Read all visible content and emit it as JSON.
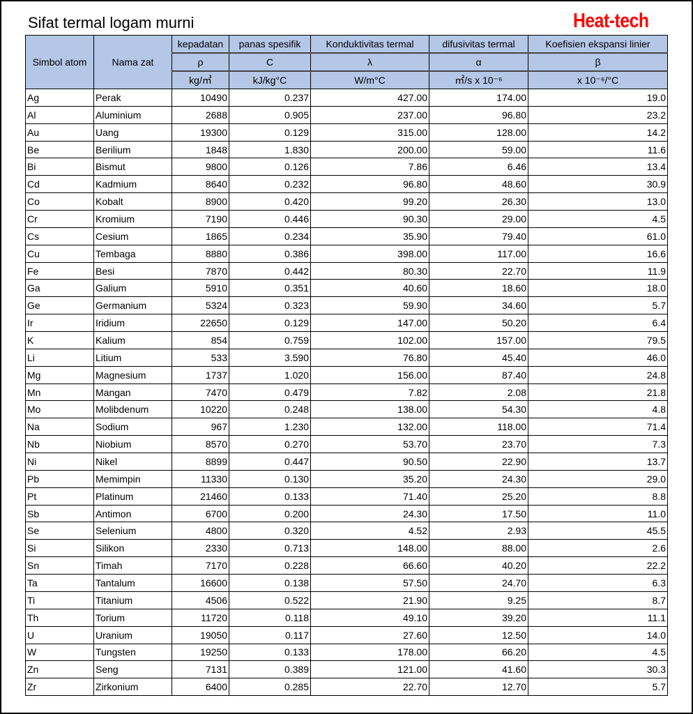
{
  "title": "Sifat termal logam murni",
  "logo": "Heat-tech",
  "header": {
    "symbol": "Simbol atom",
    "name": "Nama zat",
    "columns": [
      {
        "label": "kepadatan",
        "symbol": "ρ",
        "unit": "kg/㎥"
      },
      {
        "label": "panas spesifik",
        "symbol": "C",
        "unit": "kJ/kg°C"
      },
      {
        "label": "Konduktivitas termal",
        "symbol": "λ",
        "unit": "W/m°C"
      },
      {
        "label": "difusivitas termal",
        "symbol": "α",
        "unit": "㎡/s x 10⁻⁶"
      },
      {
        "label": "Koefisien ekspansi linier",
        "symbol": "β",
        "unit": "x 10⁻⁶/°C"
      }
    ]
  },
  "rows": [
    [
      "Ag",
      "Perak",
      "10490",
      "0.237",
      "427.00",
      "174.00",
      "19.0"
    ],
    [
      "Al",
      "Aluminium",
      "2688",
      "0.905",
      "237.00",
      "96.80",
      "23.2"
    ],
    [
      "Au",
      "Uang",
      "19300",
      "0.129",
      "315.00",
      "128.00",
      "14.2"
    ],
    [
      "Be",
      "Berilium",
      "1848",
      "1.830",
      "200.00",
      "59.00",
      "11.6"
    ],
    [
      "Bi",
      "Bismut",
      "9800",
      "0.126",
      "7.86",
      "6.46",
      "13.4"
    ],
    [
      "Cd",
      "Kadmium",
      "8640",
      "0.232",
      "96.80",
      "48.60",
      "30.9"
    ],
    [
      "Co",
      "Kobalt",
      "8900",
      "0.420",
      "99.20",
      "26.30",
      "13.0"
    ],
    [
      "Cr",
      "Kromium",
      "7190",
      "0.446",
      "90.30",
      "29.00",
      "4.5"
    ],
    [
      "Cs",
      "Cesium",
      "1865",
      "0.234",
      "35.90",
      "79.40",
      "61.0"
    ],
    [
      "Cu",
      "Tembaga",
      "8880",
      "0.386",
      "398.00",
      "117.00",
      "16.6"
    ],
    [
      "Fe",
      "Besi",
      "7870",
      "0.442",
      "80.30",
      "22.70",
      "11.9"
    ],
    [
      "Ga",
      "Galium",
      "5910",
      "0.351",
      "40.60",
      "18.60",
      "18.0"
    ],
    [
      "Ge",
      "Germanium",
      "5324",
      "0.323",
      "59.90",
      "34.60",
      "5.7"
    ],
    [
      "Ir",
      "Iridium",
      "22650",
      "0.129",
      "147.00",
      "50.20",
      "6.4"
    ],
    [
      "K",
      "Kalium",
      "854",
      "0.759",
      "102.00",
      "157.00",
      "79.5"
    ],
    [
      "Li",
      "Litium",
      "533",
      "3.590",
      "76.80",
      "45.40",
      "46.0"
    ],
    [
      "Mg",
      "Magnesium",
      "1737",
      "1.020",
      "156.00",
      "87.40",
      "24.8"
    ],
    [
      "Mn",
      "Mangan",
      "7470",
      "0.479",
      "7.82",
      "2.08",
      "21.8"
    ],
    [
      "Mo",
      "Molibdenum",
      "10220",
      "0.248",
      "138.00",
      "54.30",
      "4.8"
    ],
    [
      "Na",
      "Sodium",
      "967",
      "1.230",
      "132.00",
      "118.00",
      "71.4"
    ],
    [
      "Nb",
      "Niobium",
      "8570",
      "0.270",
      "53.70",
      "23.70",
      "7.3"
    ],
    [
      "Ni",
      "Nikel",
      "8899",
      "0.447",
      "90.50",
      "22.90",
      "13.7"
    ],
    [
      "Pb",
      "Memimpin",
      "11330",
      "0.130",
      "35.20",
      "24.30",
      "29.0"
    ],
    [
      "Pt",
      "Platinum",
      "21460",
      "0.133",
      "71.40",
      "25.20",
      "8.8"
    ],
    [
      "Sb",
      "Antimon",
      "6700",
      "0.200",
      "24.30",
      "17.50",
      "11.0"
    ],
    [
      "Se",
      "Selenium",
      "4800",
      "0.320",
      "4.52",
      "2.93",
      "45.5"
    ],
    [
      "Si",
      "Silikon",
      "2330",
      "0.713",
      "148.00",
      "88.00",
      "2.6"
    ],
    [
      "Sn",
      "Timah",
      "7170",
      "0.228",
      "66.60",
      "40.20",
      "22.2"
    ],
    [
      "Ta",
      "Tantalum",
      "16600",
      "0.138",
      "57.50",
      "24.70",
      "6.3"
    ],
    [
      "Ti",
      "Titanium",
      "4506",
      "0.522",
      "21.90",
      "9.25",
      "8.7"
    ],
    [
      "Th",
      "Torium",
      "11720",
      "0.118",
      "49.10",
      "39.20",
      "11.1"
    ],
    [
      "U",
      "Uranium",
      "19050",
      "0.117",
      "27.60",
      "12.50",
      "14.0"
    ],
    [
      "W",
      "Tungsten",
      "19250",
      "0.133",
      "178.00",
      "66.20",
      "4.5"
    ],
    [
      "Zn",
      "Seng",
      "7131",
      "0.389",
      "121.00",
      "41.60",
      "30.3"
    ],
    [
      "Zr",
      "Zirkonium",
      "6400",
      "0.285",
      "22.70",
      "12.70",
      "5.7"
    ]
  ]
}
